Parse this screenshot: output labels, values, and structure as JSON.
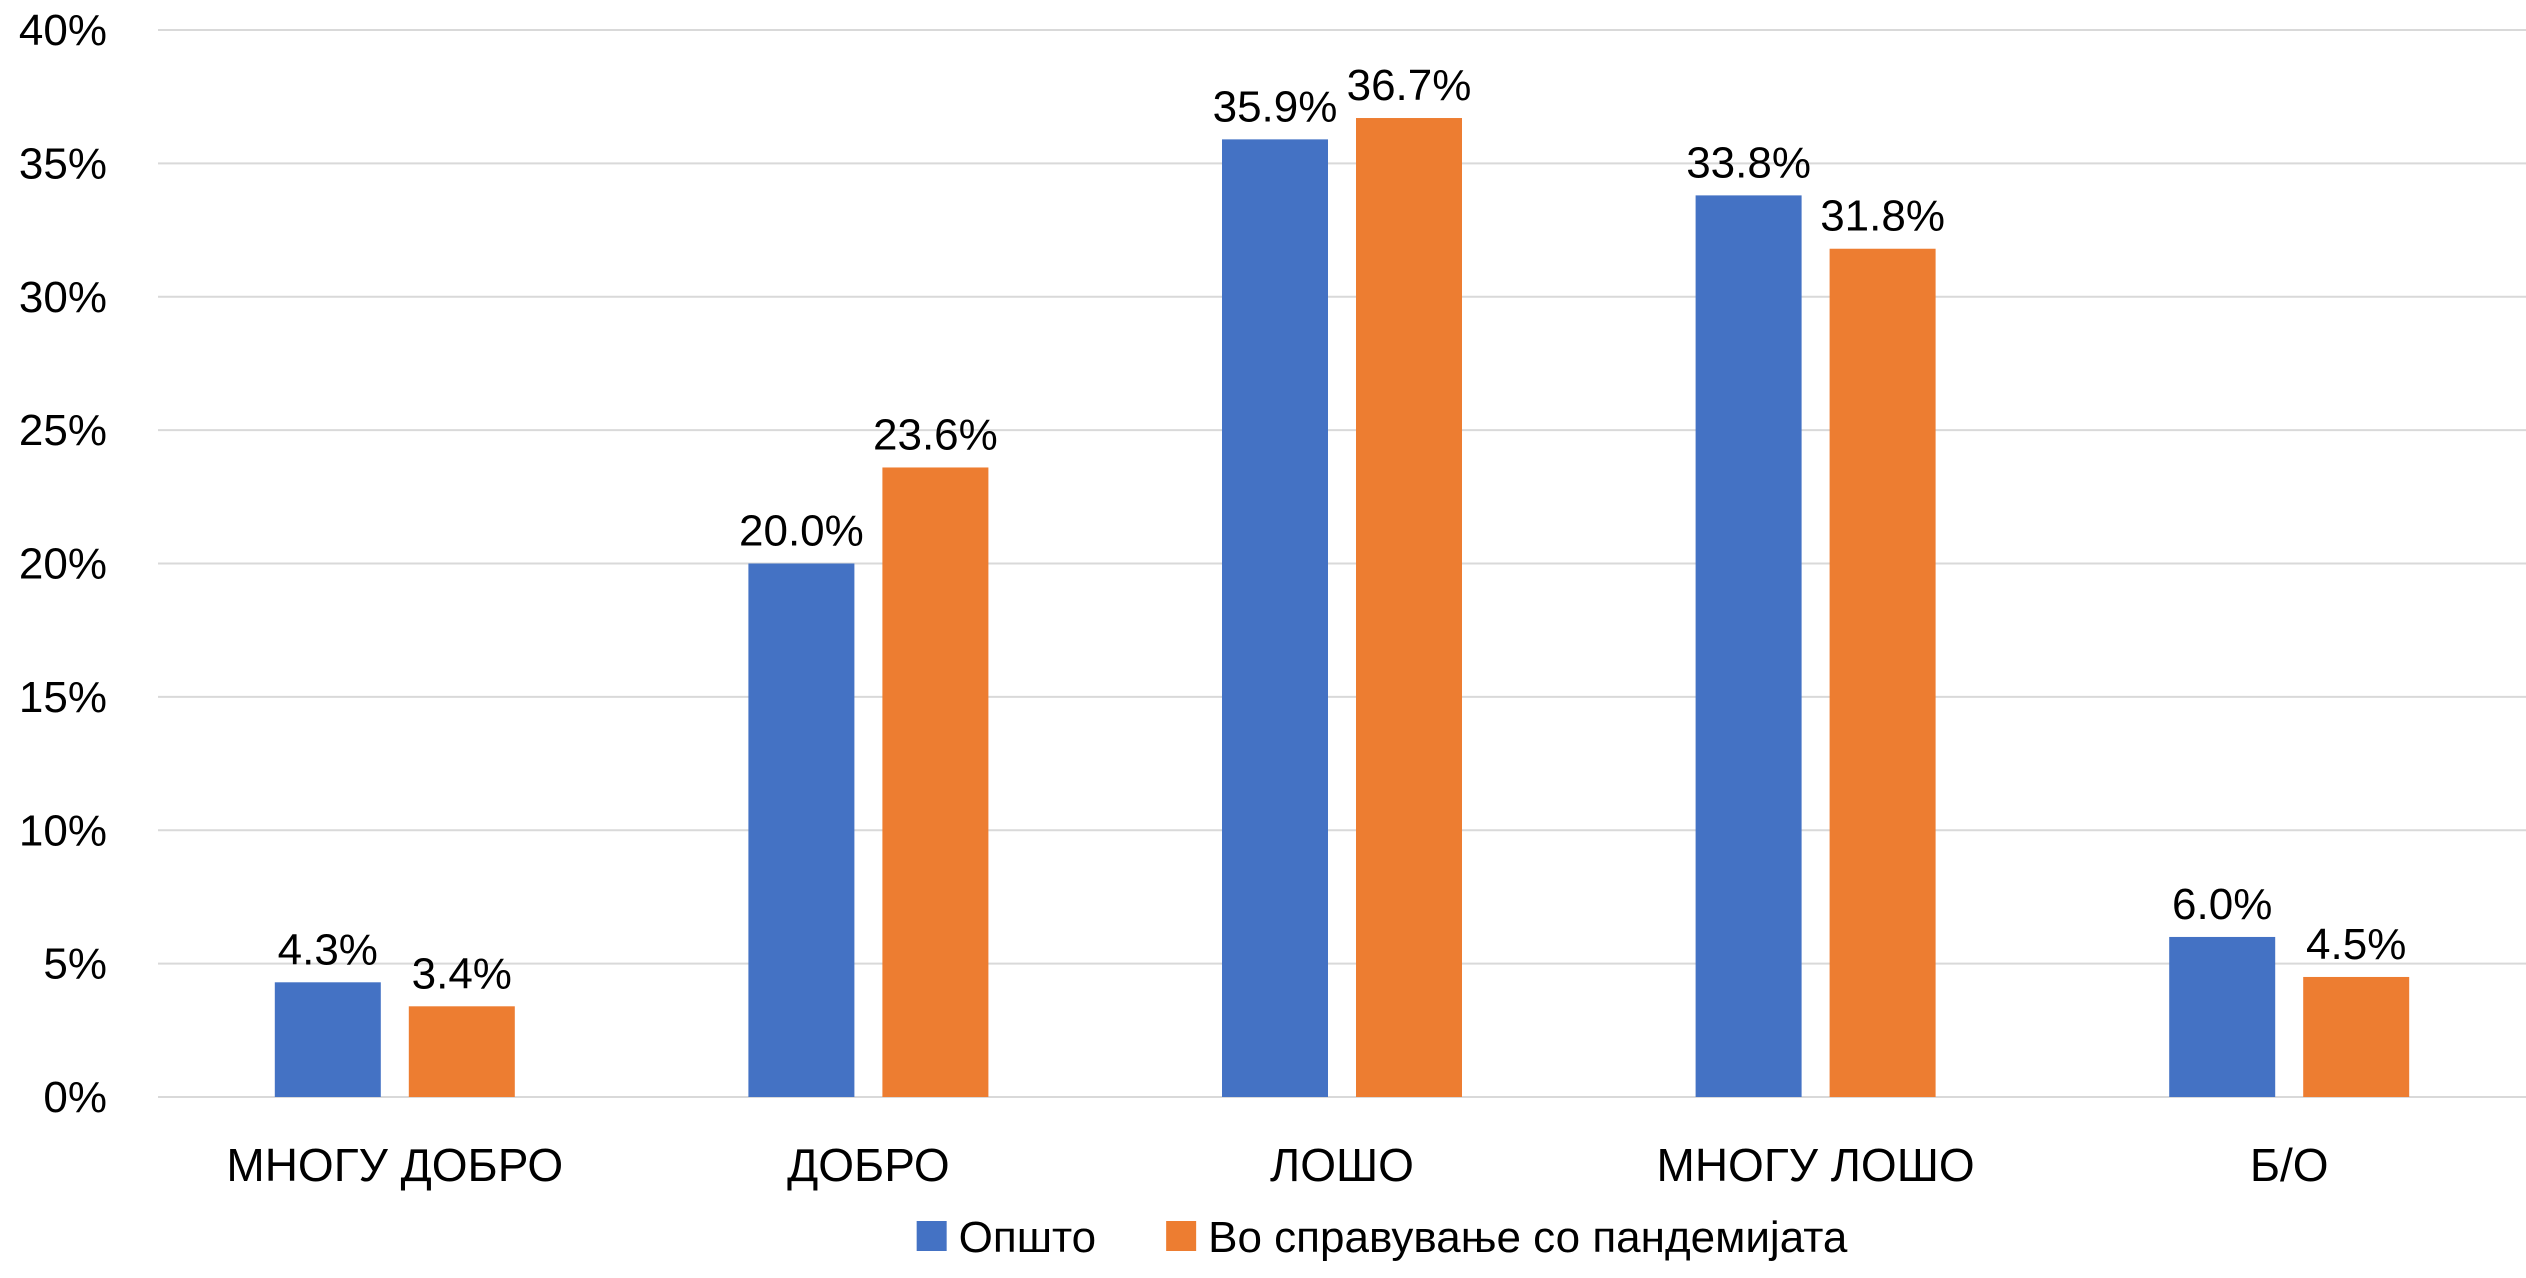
{
  "chart_data": {
    "type": "bar",
    "categories": [
      "МНОГУ ДОБРО",
      "ДОБРО",
      "ЛОШО",
      "МНОГУ ЛОШО",
      "Б/О"
    ],
    "series": [
      {
        "name": "Општо",
        "color": "#4472C4",
        "values": [
          4.3,
          20.0,
          35.9,
          33.8,
          6.0
        ],
        "labels": [
          "4.3%",
          "20.0%",
          "35.9%",
          "33.8%",
          "6.0%"
        ]
      },
      {
        "name": "Во справување со пандемијата",
        "color": "#ED7D31",
        "values": [
          3.4,
          23.6,
          36.7,
          31.8,
          4.5
        ],
        "labels": [
          "3.4%",
          "23.6%",
          "36.7%",
          "31.8%",
          "4.5%"
        ]
      }
    ],
    "yticks": [
      0,
      5,
      10,
      15,
      20,
      25,
      30,
      35,
      40
    ],
    "ytick_labels": [
      "0%",
      "5%",
      "10%",
      "15%",
      "20%",
      "25%",
      "30%",
      "35%",
      "40%"
    ],
    "ylim": [
      0,
      40
    ],
    "grid": true,
    "legend_position": "bottom"
  }
}
